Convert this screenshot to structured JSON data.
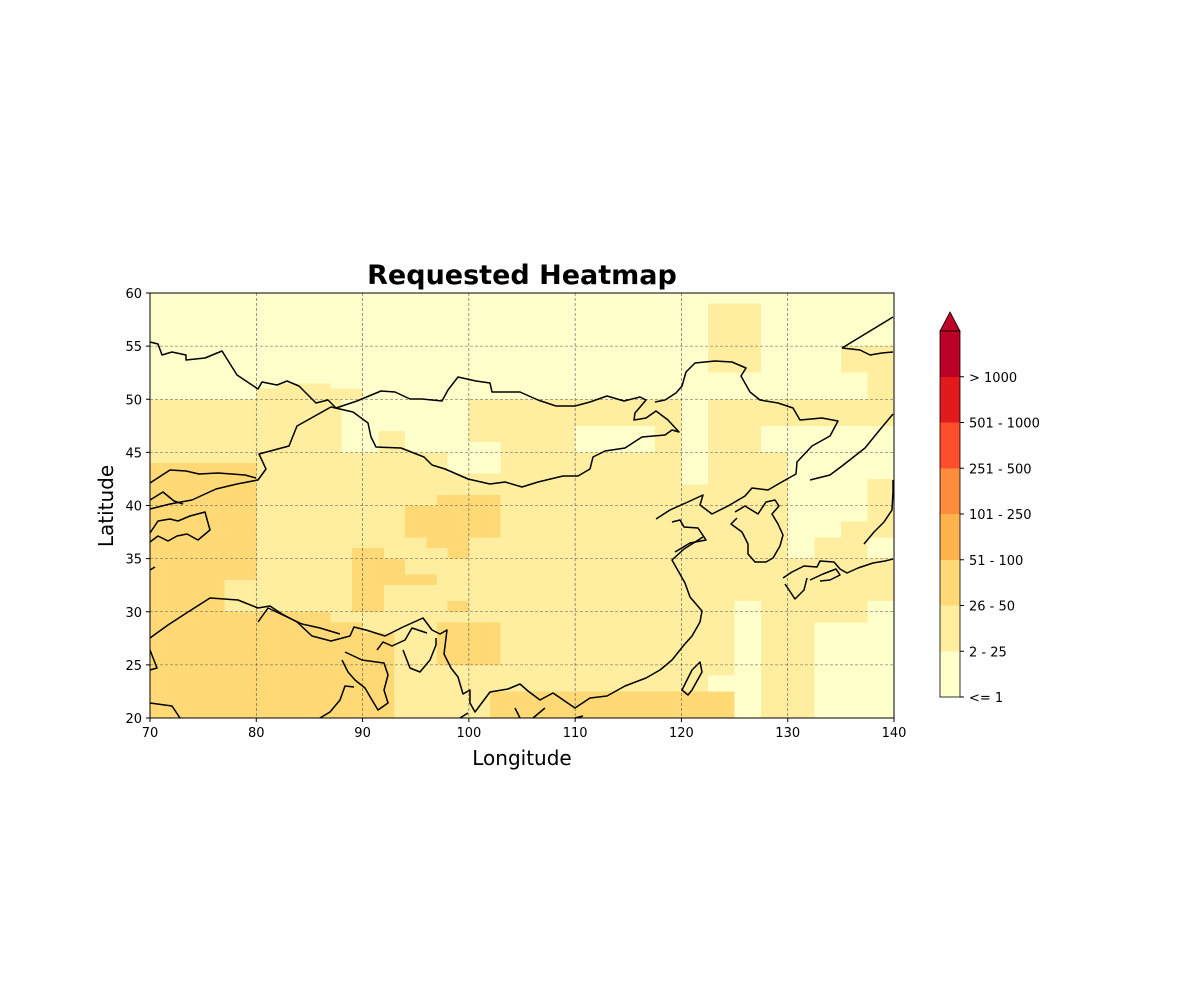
{
  "chart_data": {
    "type": "heatmap",
    "title": "Requested Heatmap",
    "xlabel": "Longitude",
    "ylabel": "Latitude",
    "xlim": [
      70,
      140
    ],
    "ylim": [
      20,
      60
    ],
    "xticks": [
      70,
      80,
      90,
      100,
      110,
      120,
      130,
      140
    ],
    "yticks": [
      20,
      25,
      30,
      35,
      40,
      45,
      50,
      55,
      60
    ],
    "grid": true,
    "grid_style": "dashed",
    "cell_size_deg": 2.5,
    "colorbar": {
      "placement": "right",
      "extend": "max",
      "bins": [
        {
          "label": "<= 1",
          "color": "#ffffcc"
        },
        {
          "label": "2 - 25",
          "color": "#ffeda0"
        },
        {
          "label": "26 - 50",
          "color": "#fed976"
        },
        {
          "label": "51 - 100",
          "color": "#feb24c"
        },
        {
          "label": "101 - 250",
          "color": "#fd8d3c"
        },
        {
          "label": "251 - 500",
          "color": "#fc4e2a"
        },
        {
          "label": "501 - 1000",
          "color": "#e31a1c"
        },
        {
          "label": "> 1000",
          "color": "#bd0026"
        }
      ]
    },
    "background_bin": 0,
    "regions": [
      {
        "lon": [
          70,
          140
        ],
        "lat": [
          20,
          50
        ],
        "bin": 1
      },
      {
        "lon": [
          82,
          87
        ],
        "lat": [
          50,
          51.5
        ],
        "bin": 1
      },
      {
        "lon": [
          80,
          90
        ],
        "lat": [
          47.5,
          51
        ],
        "bin": 1
      },
      {
        "lon": [
          88,
          92
        ],
        "lat": [
          47.5,
          50
        ],
        "bin": 1
      },
      {
        "lon": [
          122.5,
          127.5
        ],
        "lat": [
          52.5,
          59
        ],
        "bin": 1
      },
      {
        "lon": [
          135,
          140
        ],
        "lat": [
          52.5,
          55
        ],
        "bin": 1
      },
      {
        "lon": [
          137.5,
          140
        ],
        "lat": [
          47.5,
          52.5
        ],
        "bin": 1
      },
      {
        "lon": [
          88,
          100
        ],
        "lat": [
          45,
          50
        ],
        "bin": 0
      },
      {
        "lon": [
          91.5,
          94
        ],
        "lat": [
          45,
          47
        ],
        "bin": 1
      },
      {
        "lon": [
          96,
          98
        ],
        "lat": [
          42.5,
          45
        ],
        "bin": 1
      },
      {
        "lon": [
          98,
          103
        ],
        "lat": [
          43,
          46
        ],
        "bin": 0
      },
      {
        "lon": [
          103,
          110
        ],
        "lat": [
          45,
          47
        ],
        "bin": 1
      },
      {
        "lon": [
          110,
          117.5
        ],
        "lat": [
          45,
          47.5
        ],
        "bin": 0
      },
      {
        "lon": [
          120,
          122.5
        ],
        "lat": [
          42,
          50
        ],
        "bin": 0
      },
      {
        "lon": [
          127.5,
          130
        ],
        "lat": [
          45,
          47.5
        ],
        "bin": 0
      },
      {
        "lon": [
          130,
          140
        ],
        "lat": [
          35,
          47.5
        ],
        "bin": 0
      },
      {
        "lon": [
          132.5,
          137.5
        ],
        "lat": [
          35,
          37
        ],
        "bin": 1
      },
      {
        "lon": [
          135,
          140
        ],
        "lat": [
          37,
          38.5
        ],
        "bin": 1
      },
      {
        "lon": [
          137.5,
          140
        ],
        "lat": [
          38.5,
          42.5
        ],
        "bin": 1
      },
      {
        "lon": [
          125,
          127.5
        ],
        "lat": [
          20,
          31
        ],
        "bin": 0
      },
      {
        "lon": [
          122.5,
          125
        ],
        "lat": [
          22.5,
          24
        ],
        "bin": 0
      },
      {
        "lon": [
          132.5,
          140
        ],
        "lat": [
          20,
          29
        ],
        "bin": 0
      },
      {
        "lon": [
          137.5,
          140
        ],
        "lat": [
          29,
          31
        ],
        "bin": 0
      },
      {
        "lon": [
          70,
          80
        ],
        "lat": [
          20,
          44
        ],
        "bin": 2
      },
      {
        "lon": [
          77,
          80
        ],
        "lat": [
          30,
          33
        ],
        "bin": 1
      },
      {
        "lon": [
          80,
          82.5
        ],
        "lat": [
          20,
          30
        ],
        "bin": 2
      },
      {
        "lon": [
          82.5,
          93
        ],
        "lat": [
          20,
          28
        ],
        "bin": 2
      },
      {
        "lon": [
          75,
          77
        ],
        "lat": [
          29,
          31
        ],
        "bin": 2
      },
      {
        "lon": [
          82,
          87
        ],
        "lat": [
          26,
          30
        ],
        "bin": 2
      },
      {
        "lon": [
          87,
          90
        ],
        "lat": [
          25,
          29
        ],
        "bin": 2
      },
      {
        "lon": [
          89,
          92
        ],
        "lat": [
          30,
          36
        ],
        "bin": 2
      },
      {
        "lon": [
          92,
          94
        ],
        "lat": [
          32.5,
          35
        ],
        "bin": 2
      },
      {
        "lon": [
          94,
          97
        ],
        "lat": [
          32.5,
          33.5
        ],
        "bin": 2
      },
      {
        "lon": [
          94,
          103
        ],
        "lat": [
          37,
          40
        ],
        "bin": 2
      },
      {
        "lon": [
          97,
          103
        ],
        "lat": [
          40,
          41
        ],
        "bin": 2
      },
      {
        "lon": [
          96,
          100
        ],
        "lat": [
          36,
          37
        ],
        "bin": 2
      },
      {
        "lon": [
          98,
          100
        ],
        "lat": [
          35,
          36
        ],
        "bin": 2
      },
      {
        "lon": [
          98,
          100
        ],
        "lat": [
          30,
          31
        ],
        "bin": 2
      },
      {
        "lon": [
          97,
          103
        ],
        "lat": [
          25,
          29
        ],
        "bin": 2
      },
      {
        "lon": [
          102,
          125
        ],
        "lat": [
          20,
          22.5
        ],
        "bin": 2
      }
    ]
  }
}
